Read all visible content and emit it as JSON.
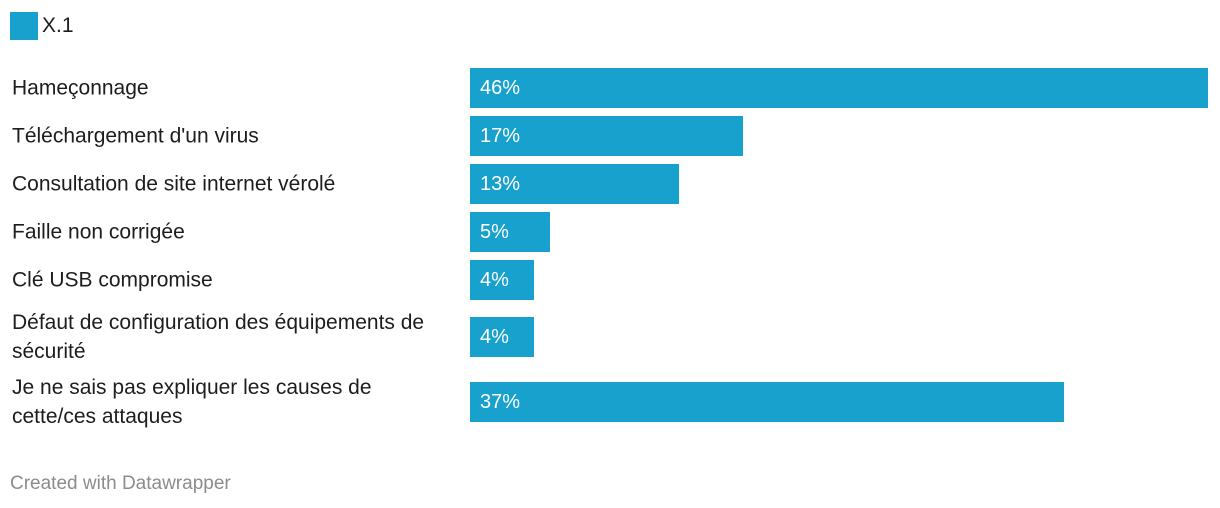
{
  "chart_data": {
    "type": "bar",
    "orientation": "horizontal",
    "categories": [
      "Hameçonnage",
      "Téléchargement d'un virus",
      "Consultation de site internet vérolé",
      "Faille non corrigée",
      "Clé USB compromise",
      "Défaut de configuration des équipements de sécurité",
      "Je ne sais pas expliquer les causes de cette/ces attaques"
    ],
    "series": [
      {
        "name": "X.1",
        "values": [
          46,
          17,
          13,
          5,
          4,
          4,
          37
        ],
        "value_labels": [
          "46%",
          "17%",
          "13%",
          "5%",
          "4%",
          "4%",
          "37%"
        ]
      }
    ],
    "xlim": [
      0,
      46
    ],
    "unit": "%",
    "grid": false,
    "legend": "top-left",
    "color": "#18a1cd"
  },
  "footer": "Created with Datawrapper"
}
